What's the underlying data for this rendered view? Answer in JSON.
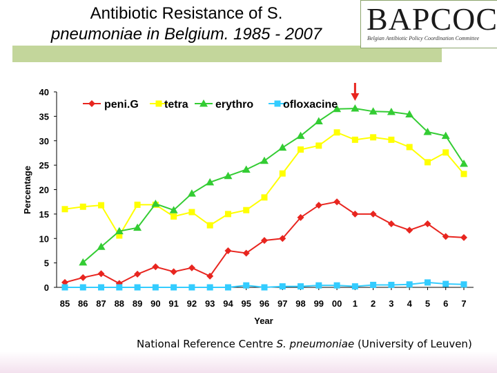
{
  "slide": {
    "title_line1": "Antibiotic Resistance of S.",
    "title_line2": "pneumoniae in Belgium. 1985 - 2007",
    "logo_text": "BAPCOC",
    "logo_subtitle": "Belgian Antibiotic Policy Coordination Committee",
    "credit_prefix": "National Reference Centre ",
    "credit_italic": "S. pneumoniae",
    "credit_suffix": " (University of Leuven)"
  },
  "colors": {
    "title_bar": "#c3d69b",
    "arrow": "#e8251f"
  },
  "chart_data": {
    "type": "line",
    "title": "",
    "xlabel": "Year",
    "ylabel": "Percentage",
    "ylim": [
      0,
      40
    ],
    "yticks": [
      0,
      5,
      10,
      15,
      20,
      25,
      30,
      35,
      40
    ],
    "categories": [
      "85",
      "86",
      "87",
      "88",
      "89",
      "90",
      "91",
      "92",
      "93",
      "94",
      "95",
      "96",
      "97",
      "98",
      "99",
      "00",
      "1",
      "2",
      "3",
      "4",
      "5",
      "6",
      "7"
    ],
    "legend_position": "top",
    "annotation": "red arrow pointing down at year 1",
    "series": [
      {
        "name": "peni.G",
        "color": "#e8251f",
        "marker": "diamond",
        "values": [
          1.0,
          2.0,
          2.8,
          0.8,
          2.7,
          4.2,
          3.2,
          4.0,
          2.3,
          7.5,
          7.0,
          9.6,
          10.0,
          14.3,
          16.8,
          17.5,
          15.0,
          15.0,
          13.0,
          11.7,
          13.0,
          10.4,
          10.2
        ]
      },
      {
        "name": "tetra",
        "color": "#ffff00",
        "marker": "square",
        "values": [
          16.0,
          16.5,
          16.8,
          10.6,
          16.9,
          16.9,
          14.5,
          15.4,
          12.7,
          15.0,
          15.8,
          18.4,
          23.3,
          28.2,
          29.0,
          31.7,
          30.2,
          30.7,
          30.2,
          28.7,
          25.6,
          27.6,
          23.2
        ]
      },
      {
        "name": "erythro",
        "color": "#33cc33",
        "marker": "triangle",
        "values": [
          null,
          5.1,
          8.3,
          11.5,
          12.2,
          17.1,
          15.8,
          19.2,
          21.5,
          22.8,
          24.1,
          25.9,
          28.6,
          31.0,
          34.0,
          36.5,
          36.6,
          36.0,
          35.9,
          35.4,
          31.8,
          31.0,
          25.3
        ]
      },
      {
        "name": "ofloxacine",
        "color": "#33ccff",
        "marker": "square",
        "values": [
          0.0,
          0.0,
          0.0,
          0.0,
          0.0,
          0.0,
          0.0,
          0.0,
          0.0,
          0.0,
          0.4,
          0.0,
          0.2,
          0.2,
          0.4,
          0.4,
          0.2,
          0.5,
          0.5,
          0.6,
          1.0,
          0.7,
          0.6
        ]
      }
    ]
  }
}
